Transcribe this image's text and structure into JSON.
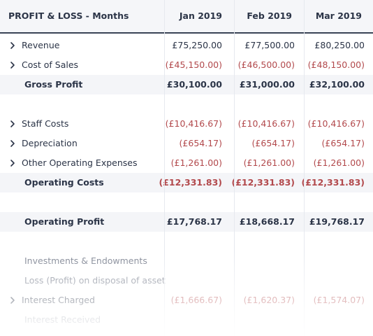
{
  "header": {
    "title": "PROFIT & LOSS - Months",
    "months": [
      "Jan 2019",
      "Feb 2019",
      "Mar 2019"
    ]
  },
  "rows": [
    {
      "label": "Revenue",
      "type": "expandable",
      "values": [
        "£75,250.00",
        "£77,500.00",
        "£80,250.00"
      ],
      "negative": false
    },
    {
      "label": "Cost of Sales",
      "type": "expandable",
      "values": [
        "(£45,150.00)",
        "(£46,500.00)",
        "(£48,150.00)"
      ],
      "negative": true
    },
    {
      "label": "Gross Profit",
      "type": "total",
      "values": [
        "£30,100.00",
        "£31,000.00",
        "£32,100.00"
      ],
      "negative": false
    },
    {
      "label": "",
      "type": "spacer",
      "values": [],
      "negative": false
    },
    {
      "label": "Staff Costs",
      "type": "expandable",
      "values": [
        "(£10,416.67)",
        "(£10,416.67)",
        "(£10,416.67)"
      ],
      "negative": true
    },
    {
      "label": "Depreciation",
      "type": "expandable",
      "values": [
        "(£654.17)",
        "(£654.17)",
        "(£654.17)"
      ],
      "negative": true
    },
    {
      "label": "Other Operating Expenses",
      "type": "expandable",
      "values": [
        "(£1,261.00)",
        "(£1,261.00)",
        "(£1,261.00)"
      ],
      "negative": true
    },
    {
      "label": "Operating Costs",
      "type": "total",
      "values": [
        "(£12,331.83)",
        "(£12,331.83)",
        "(£12,331.83)"
      ],
      "negative": true
    },
    {
      "label": "",
      "type": "spacer",
      "values": [],
      "negative": false
    },
    {
      "label": "Operating Profit",
      "type": "total",
      "values": [
        "£17,768.17",
        "£18,668.17",
        "£19,768.17"
      ],
      "negative": false
    },
    {
      "label": "",
      "type": "spacer",
      "values": [],
      "negative": false
    },
    {
      "label": "Investments & Endowments",
      "type": "plain",
      "values": [],
      "negative": false
    },
    {
      "label": "Loss (Profit) on disposal of asset",
      "type": "plain",
      "values": [],
      "negative": false
    },
    {
      "label": "Interest Charged",
      "type": "expandable",
      "values": [
        "(£1,666.67)",
        "(£1,620.37)",
        "(£1,574.07)"
      ],
      "negative": true
    },
    {
      "label": "Interest Received",
      "type": "expandable-noicon",
      "values": [],
      "negative": false
    }
  ],
  "colors": {
    "negative": "#b2494c",
    "text": "#2b3447",
    "shaded_row": "#f4f5f8",
    "header_bg": "#f5f6f9"
  },
  "icons": {
    "expand": "chevron-right-icon"
  }
}
